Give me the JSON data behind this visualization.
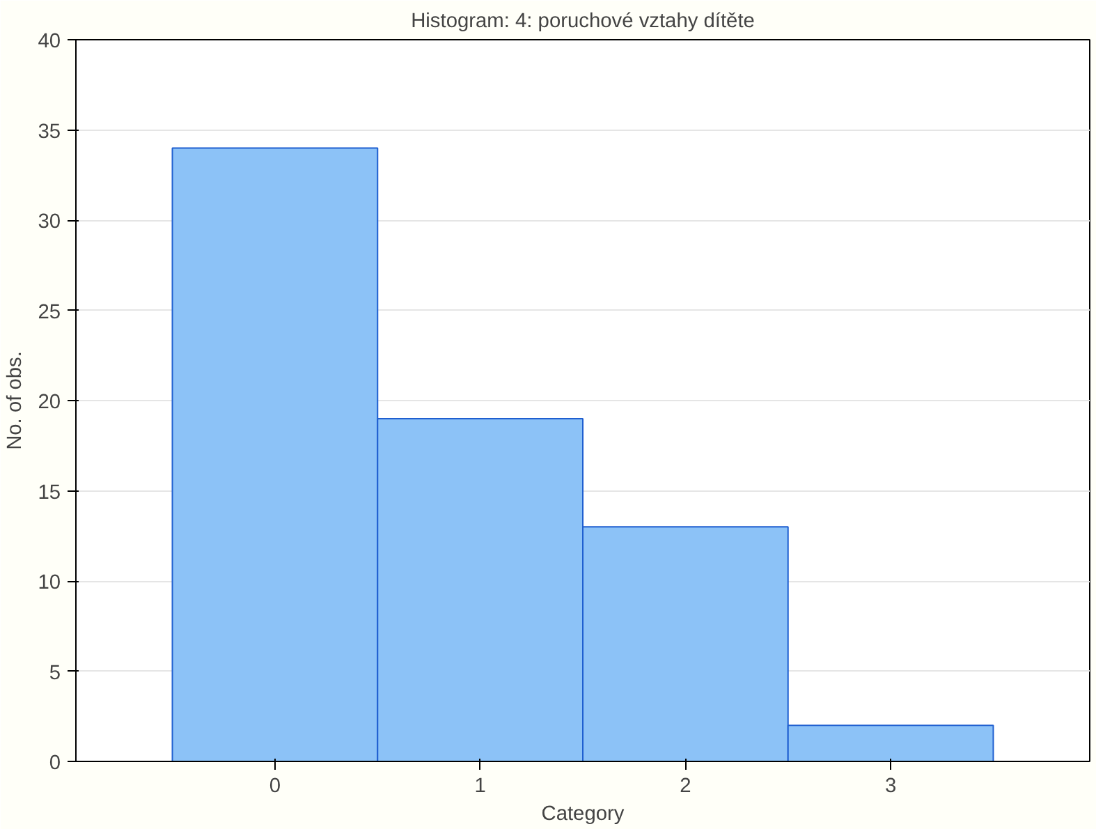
{
  "chart_data": {
    "type": "bar",
    "title": "Histogram: 4: poruchové vztahy dítěte",
    "xlabel": "Category",
    "ylabel": "No. of obs.",
    "categories": [
      "0",
      "1",
      "2",
      "3"
    ],
    "values": [
      34,
      19,
      13,
      2
    ],
    "color": "#8cc2f7",
    "ylim": [
      0,
      40
    ],
    "yticks": [
      0,
      5,
      10,
      15,
      20,
      25,
      30,
      35,
      40
    ],
    "grid": "y"
  }
}
